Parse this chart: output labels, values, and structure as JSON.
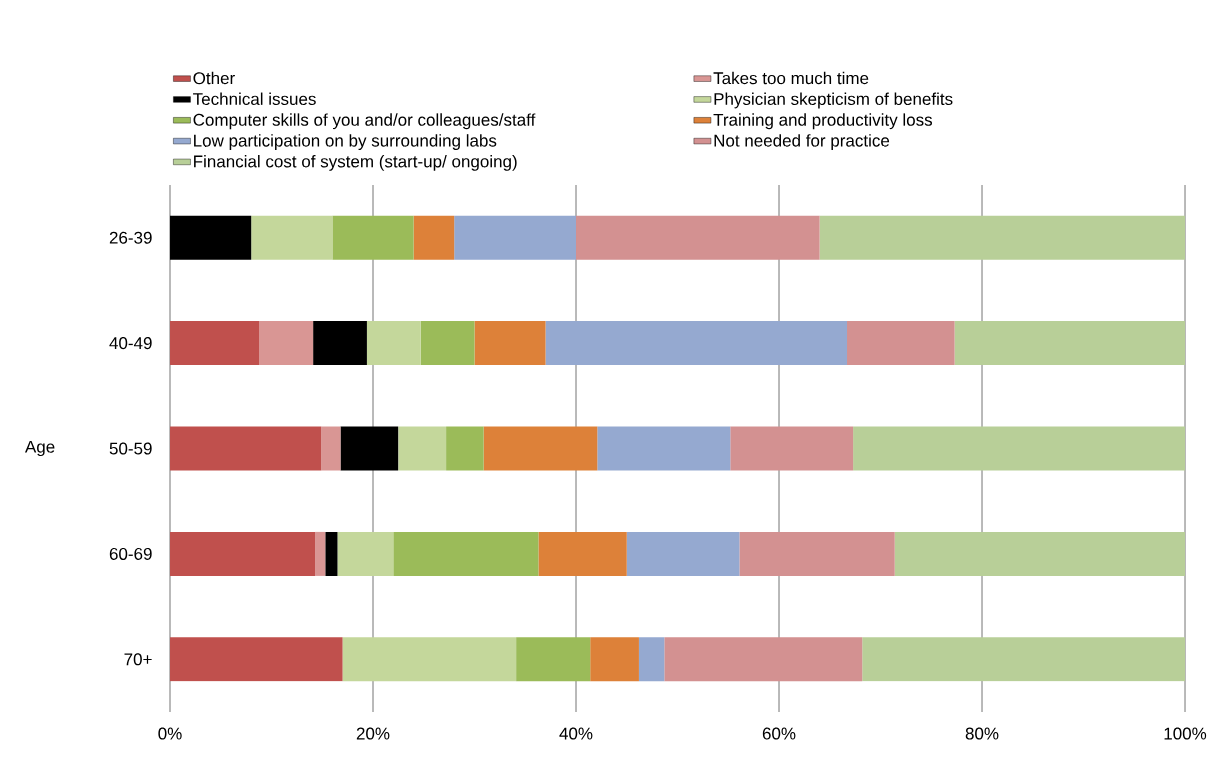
{
  "chart_data": {
    "type": "bar",
    "orientation": "horizontal",
    "stacked": true,
    "ylabel": "Age",
    "categories": [
      "26-39",
      "40-49",
      "50-59",
      "60-69",
      "70+"
    ],
    "series": [
      {
        "name": "Other",
        "color": "#c0504d",
        "values": [
          0,
          8.8,
          14.9,
          14.3,
          17.0
        ]
      },
      {
        "name": "Takes too much time",
        "color": "#d99694",
        "values": [
          0,
          5.3,
          1.9,
          1.0,
          0
        ]
      },
      {
        "name": "Technical issues",
        "color": "#000000",
        "values": [
          8.0,
          5.3,
          5.7,
          1.2,
          0
        ]
      },
      {
        "name": "Physician skepticism of benefits",
        "color": "#c4d79b",
        "values": [
          8.0,
          5.3,
          4.7,
          5.5,
          17.1
        ]
      },
      {
        "name": "Computer skills of you and/or colleagues/staff",
        "color": "#9bbb59",
        "values": [
          8.0,
          5.3,
          3.7,
          14.3,
          7.3
        ]
      },
      {
        "name": "Training and productivity loss",
        "color": "#dd8139",
        "values": [
          4.0,
          7.0,
          11.2,
          8.7,
          4.8
        ]
      },
      {
        "name": "Low participation on by surrounding labs",
        "color": "#95a9d0",
        "values": [
          12.0,
          29.7,
          13.1,
          11.1,
          2.5
        ]
      },
      {
        "name": "Not needed for practice",
        "color": "#d39191",
        "values": [
          24.0,
          10.6,
          12.1,
          15.3,
          19.5
        ]
      },
      {
        "name": "Financial cost of system (start-up/ ongoing)",
        "color": "#b8cf98",
        "values": [
          36.0,
          22.7,
          32.7,
          28.6,
          31.8
        ]
      }
    ],
    "xlim": [
      0,
      100
    ],
    "xticks": [
      {
        "value": 0,
        "label": "0%"
      },
      {
        "value": 20,
        "label": "20%"
      },
      {
        "value": 40,
        "label": "40%"
      },
      {
        "value": 60,
        "label": "60%"
      },
      {
        "value": 80,
        "label": "80%"
      },
      {
        "value": 100,
        "label": "100%"
      }
    ],
    "grid": "x",
    "legend": "top"
  }
}
